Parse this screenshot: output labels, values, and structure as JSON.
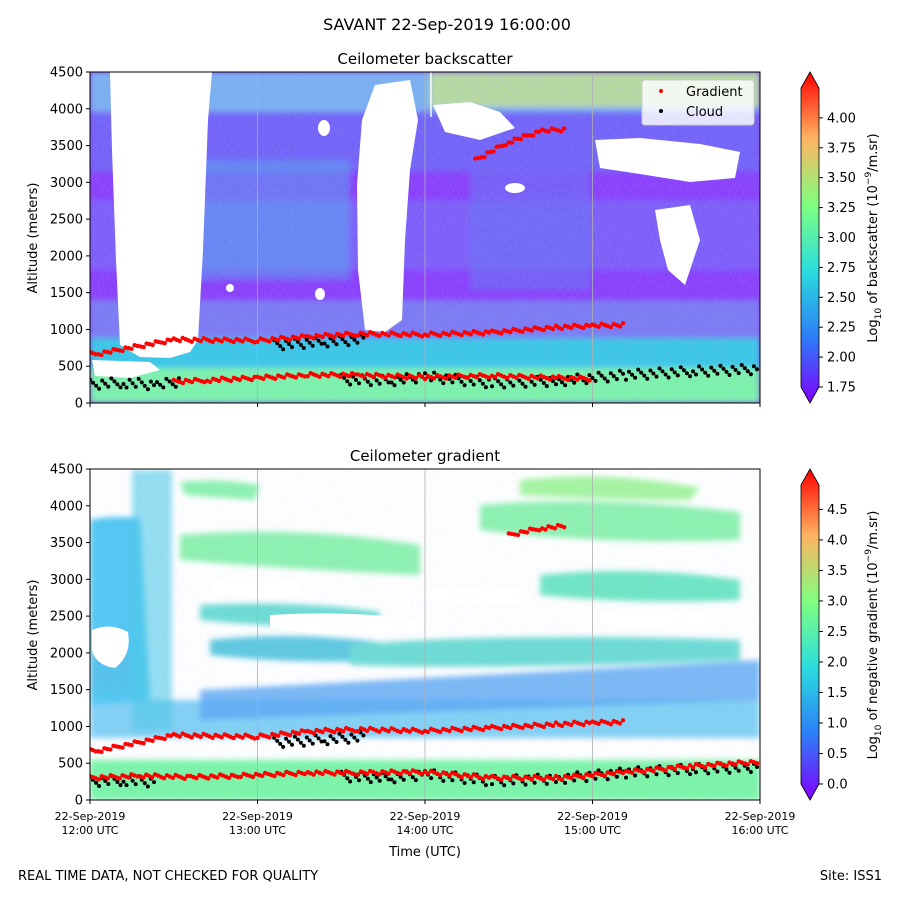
{
  "suptitle": "SAVANT 22-Sep-2019 16:00:00",
  "footer": {
    "left": "REAL TIME DATA, NOT CHECKED FOR QUALITY",
    "right": "Site: ISS1"
  },
  "x_axis": {
    "label": "Time (UTC)",
    "range_hours": [
      12.0,
      16.0
    ],
    "tick_hours": [
      12,
      13,
      14,
      15,
      16
    ],
    "tick_labels": [
      [
        "22-Sep-2019",
        "12:00 UTC"
      ],
      [
        "22-Sep-2019",
        "13:00 UTC"
      ],
      [
        "22-Sep-2019",
        "14:00 UTC"
      ],
      [
        "22-Sep-2019",
        "15:00 UTC"
      ],
      [
        "22-Sep-2019",
        "16:00 UTC"
      ]
    ]
  },
  "chart_data": [
    {
      "type": "heatmap",
      "title": "Ceilometer backscatter",
      "ylabel": "Altitude (meters)",
      "ylim": [
        0,
        4500
      ],
      "yticks": [
        0,
        500,
        1000,
        1500,
        2000,
        2500,
        3000,
        3500,
        4000,
        4500
      ],
      "colormap": "rainbow",
      "colorbar": {
        "label_prefix": "Log",
        "label_sub": "10",
        "label_mid": " of backscatter (10",
        "label_sup": "−9",
        "label_suffix": "/m.sr)",
        "range": [
          1.75,
          4.25
        ],
        "ticks": [
          1.75,
          2.0,
          2.25,
          2.5,
          2.75,
          3.0,
          3.25,
          3.5,
          3.75,
          4.0
        ],
        "tick_labels": [
          "1.75",
          "2.00",
          "2.25",
          "2.50",
          "2.75",
          "3.00",
          "3.25",
          "3.50",
          "3.75",
          "4.00"
        ]
      },
      "legend": {
        "position": "top-right",
        "entries": [
          {
            "label": "Gradient",
            "color": "#ff0000"
          },
          {
            "label": "Cloud",
            "color": "#000000"
          }
        ]
      },
      "gradient_layers": [
        {
          "name": "upper",
          "points": [
            [
              12.0,
              670
            ],
            [
              12.05,
              670
            ],
            [
              12.5,
              860
            ],
            [
              13.0,
              850
            ],
            [
              13.3,
              900
            ],
            [
              13.6,
              940
            ],
            [
              14.0,
              930
            ],
            [
              14.4,
              960
            ],
            [
              14.8,
              1030
            ],
            [
              15.0,
              1050
            ],
            [
              15.2,
              1060
            ]
          ]
        },
        {
          "name": "lower",
          "points": [
            [
              12.5,
              290
            ],
            [
              12.7,
              310
            ],
            [
              13.0,
              340
            ],
            [
              13.3,
              380
            ],
            [
              13.6,
              380
            ],
            [
              14.0,
              350
            ],
            [
              14.4,
              370
            ],
            [
              14.8,
              340
            ],
            [
              15.0,
              330
            ]
          ]
        },
        {
          "name": "upper-aloft",
          "points": [
            [
              14.3,
              3300
            ],
            [
              14.5,
              3550
            ],
            [
              14.7,
              3700
            ],
            [
              14.85,
              3720
            ]
          ]
        }
      ],
      "cloud_layers": [
        {
          "name": "low-early",
          "points": [
            [
              12.0,
              250
            ],
            [
              12.2,
              280
            ],
            [
              12.4,
              240
            ],
            [
              12.55,
              300
            ]
          ]
        },
        {
          "name": "mid",
          "points": [
            [
              13.1,
              790
            ],
            [
              13.4,
              830
            ],
            [
              13.65,
              870
            ]
          ]
        },
        {
          "name": "low-late",
          "points": [
            [
              13.5,
              320
            ],
            [
              13.8,
              300
            ],
            [
              14.0,
              360
            ],
            [
              14.4,
              270
            ],
            [
              14.8,
              300
            ],
            [
              15.2,
              380
            ],
            [
              15.6,
              430
            ],
            [
              16.0,
              460
            ]
          ]
        }
      ]
    },
    {
      "type": "heatmap",
      "title": "Ceilometer gradient",
      "ylabel": "Altitude (meters)",
      "ylim": [
        0,
        4500
      ],
      "yticks": [
        0,
        500,
        1000,
        1500,
        2000,
        2500,
        3000,
        3500,
        4000,
        4500
      ],
      "colormap": "rainbow",
      "colorbar": {
        "label_prefix": "Log",
        "label_sub": "10",
        "label_mid": " of negative gradient (10",
        "label_sup": "−9",
        "label_suffix": "/m.sr)",
        "range": [
          0.0,
          4.9
        ],
        "ticks": [
          0.0,
          0.5,
          1.0,
          1.5,
          2.0,
          2.5,
          3.0,
          3.5,
          4.0,
          4.5
        ],
        "tick_labels": [
          "0.0",
          "0.5",
          "1.0",
          "1.5",
          "2.0",
          "2.5",
          "3.0",
          "3.5",
          "4.0",
          "4.5"
        ]
      },
      "gradient_layers": [
        {
          "name": "upper",
          "points": [
            [
              12.0,
              670
            ],
            [
              12.05,
              670
            ],
            [
              12.5,
              880
            ],
            [
              13.0,
              860
            ],
            [
              13.3,
              930
            ],
            [
              13.6,
              960
            ],
            [
              14.0,
              940
            ],
            [
              14.4,
              980
            ],
            [
              14.8,
              1030
            ],
            [
              15.0,
              1050
            ],
            [
              15.2,
              1060
            ]
          ]
        },
        {
          "name": "lower",
          "points": [
            [
              12.0,
              300
            ],
            [
              12.3,
              330
            ],
            [
              12.6,
              310
            ],
            [
              12.9,
              330
            ],
            [
              13.3,
              370
            ],
            [
              13.6,
              370
            ],
            [
              14.0,
              380
            ],
            [
              14.4,
              300
            ],
            [
              14.8,
              300
            ],
            [
              15.2,
              380
            ],
            [
              15.6,
              460
            ],
            [
              16.0,
              520
            ]
          ]
        },
        {
          "name": "upper-aloft",
          "points": [
            [
              14.5,
              3600
            ],
            [
              14.7,
              3700
            ],
            [
              14.85,
              3720
            ]
          ]
        }
      ],
      "cloud_layers": [
        {
          "name": "low-early",
          "points": [
            [
              12.0,
              250
            ],
            [
              12.2,
              270
            ],
            [
              12.4,
              240
            ]
          ]
        },
        {
          "name": "mid",
          "points": [
            [
              13.1,
              780
            ],
            [
              13.4,
              820
            ],
            [
              13.65,
              860
            ]
          ]
        },
        {
          "name": "low-late",
          "points": [
            [
              13.5,
              320
            ],
            [
              13.8,
              300
            ],
            [
              14.0,
              350
            ],
            [
              14.4,
              260
            ],
            [
              14.8,
              290
            ],
            [
              15.2,
              370
            ],
            [
              15.6,
              420
            ],
            [
              16.0,
              450
            ]
          ]
        }
      ]
    }
  ]
}
